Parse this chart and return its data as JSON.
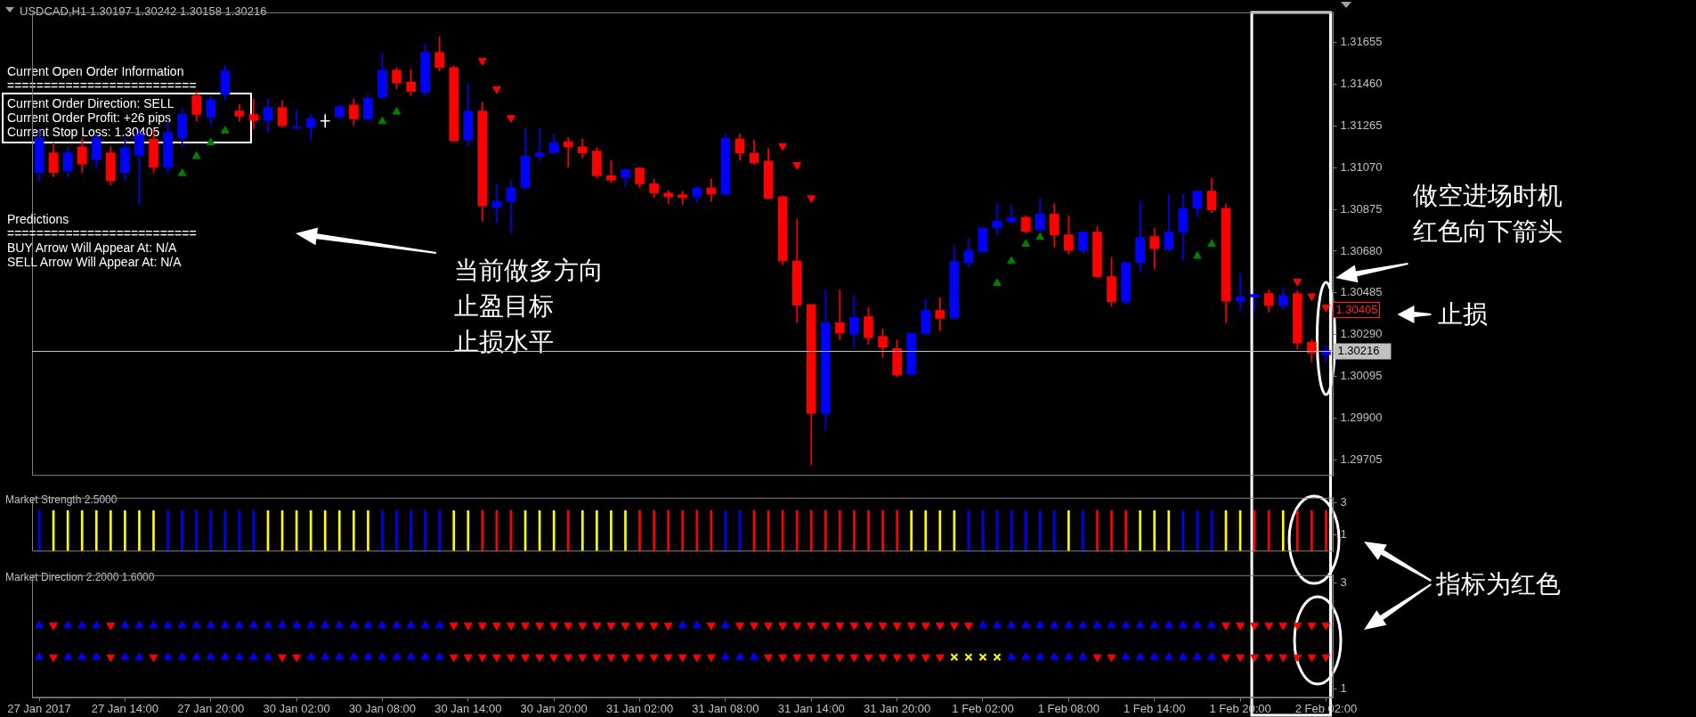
{
  "chart_data": [
    {
      "type": "candlestick",
      "title": "USDCAD,H1 1.30197 1.30242 1.30158 1.30216",
      "categories": [
        "27 Jan 2017",
        null,
        null,
        null,
        null,
        null,
        "27 Jan 14:00",
        null,
        null,
        null,
        null,
        null,
        "27 Jan 20:00",
        null,
        null,
        null,
        null,
        null,
        "30 Jan 02:00",
        null,
        null,
        null,
        null,
        null,
        "30 Jan 08:00",
        null,
        null,
        null,
        null,
        null,
        "30 Jan 14:00",
        null,
        null,
        null,
        null,
        null,
        "30 Jan 20:00",
        null,
        null,
        null,
        null,
        null,
        "31 Jan 02:00",
        null,
        null,
        null,
        null,
        null,
        "31 Jan 08:00",
        null,
        null,
        null,
        null,
        null,
        "31 Jan 14:00",
        null,
        null,
        null,
        null,
        null,
        "31 Jan 20:00",
        null,
        null,
        null,
        null,
        null,
        "1 Feb 02:00",
        null,
        null,
        null,
        null,
        null,
        "1 Feb 08:00",
        null,
        null,
        null,
        null,
        null,
        "1 Feb 14:00",
        null,
        null,
        null,
        null,
        null,
        "1 Feb 20:00",
        null,
        null,
        null,
        null,
        null,
        "2 Feb 02:00"
      ],
      "ohlc": [
        [
          1.31047,
          1.31246,
          1.31008,
          1.31207
        ],
        [
          1.31139,
          1.31187,
          1.31027,
          1.31047
        ],
        [
          1.31055,
          1.31167,
          1.31027,
          1.31139
        ],
        [
          1.31167,
          1.31207,
          1.31047,
          1.31087
        ],
        [
          1.31107,
          1.31226,
          1.31067,
          1.31207
        ],
        [
          1.31139,
          1.31167,
          1.30988,
          1.31008
        ],
        [
          1.31047,
          1.31207,
          1.31008,
          1.31163
        ],
        [
          1.31127,
          1.31246,
          1.30896,
          1.31226
        ],
        [
          1.31203,
          1.31246,
          1.31047,
          1.31071
        ],
        [
          1.31071,
          1.31286,
          1.31047,
          1.31234
        ],
        [
          1.31207,
          1.31346,
          1.31167,
          1.31318
        ],
        [
          1.31406,
          1.31425,
          1.31286,
          1.31318
        ],
        [
          1.31306,
          1.31406,
          1.31266,
          1.31386
        ],
        [
          1.31413,
          1.31545,
          1.31386,
          1.31521
        ],
        [
          1.31334,
          1.31366,
          1.31286,
          1.3131
        ],
        [
          1.31318,
          1.3139,
          1.3125,
          1.3129
        ],
        [
          1.3129,
          1.3139,
          1.31234,
          1.3135
        ],
        [
          1.3135,
          1.31382,
          1.31258,
          1.31266
        ],
        [
          1.31254,
          1.31342,
          1.3125,
          1.31258
        ],
        [
          1.31258,
          1.31318,
          1.31203,
          1.31298
        ],
        [
          1.31286,
          1.31318,
          1.31258,
          1.31286
        ],
        [
          1.31306,
          1.31362,
          1.31302,
          1.31354
        ],
        [
          1.31362,
          1.3139,
          1.31266,
          1.31298
        ],
        [
          1.31298,
          1.31413,
          1.3129,
          1.31394
        ],
        [
          1.31398,
          1.31601,
          1.3139,
          1.31525
        ],
        [
          1.31525,
          1.31537,
          1.31437,
          1.31465
        ],
        [
          1.31469,
          1.31529,
          1.31406,
          1.31425
        ],
        [
          1.31421,
          1.31648,
          1.31406,
          1.31608
        ],
        [
          1.31608,
          1.3168,
          1.31521,
          1.31537
        ],
        [
          1.31537,
          1.31545,
          1.31191,
          1.31195
        ],
        [
          1.31199,
          1.31461,
          1.31171,
          1.31334
        ],
        [
          1.31334,
          1.31374,
          1.3082,
          1.30892
        ],
        [
          1.30884,
          1.30992,
          1.30813,
          1.30912
        ],
        [
          1.30912,
          1.31008,
          1.30765,
          1.30976
        ],
        [
          1.30976,
          1.3125,
          1.30968,
          1.31123
        ],
        [
          1.31123,
          1.3125,
          1.31103,
          1.31139
        ],
        [
          1.31139,
          1.31226,
          1.31139,
          1.31187
        ],
        [
          1.31191,
          1.31211,
          1.31071,
          1.31167
        ],
        [
          1.31167,
          1.31203,
          1.31115,
          1.31139
        ],
        [
          1.31147,
          1.31163,
          1.31023,
          1.31031
        ],
        [
          1.31032,
          1.31102,
          1.31,
          1.31011
        ],
        [
          1.31024,
          1.31064,
          1.3098,
          1.3106
        ],
        [
          1.31067,
          1.31072,
          1.30975,
          1.30994
        ],
        [
          1.30994,
          1.31015,
          1.3093,
          1.30951
        ],
        [
          1.30951,
          1.30962,
          1.30902,
          1.30934
        ],
        [
          1.30943,
          1.30959,
          1.30897,
          1.3093
        ],
        [
          1.30934,
          1.30978,
          1.3091,
          1.30975
        ],
        [
          1.30975,
          1.31015,
          1.30913,
          1.30946
        ],
        [
          1.30946,
          1.31227,
          1.30943,
          1.31206
        ],
        [
          1.31203,
          1.31227,
          1.31105,
          1.31138
        ],
        [
          1.31138,
          1.31199,
          1.31084,
          1.31093
        ],
        [
          1.311,
          1.31162,
          1.30923,
          1.30926
        ],
        [
          1.30934,
          1.30938,
          1.30617,
          1.30634
        ],
        [
          1.30634,
          1.30829,
          1.30346,
          1.30428
        ],
        [
          1.30431,
          1.30431,
          1.29683,
          1.29922
        ],
        [
          1.29922,
          1.30499,
          1.29846,
          1.30346
        ],
        [
          1.30346,
          1.30499,
          1.30265,
          1.30297
        ],
        [
          1.30293,
          1.30479,
          1.30233,
          1.30371
        ],
        [
          1.30374,
          1.30418,
          1.30244,
          1.30276
        ],
        [
          1.30282,
          1.30317,
          1.30184,
          1.30231
        ],
        [
          1.30225,
          1.30265,
          1.30093,
          1.30101
        ],
        [
          1.30106,
          1.30297,
          1.30101,
          1.30297
        ],
        [
          1.30296,
          1.30455,
          1.30288,
          1.30403
        ],
        [
          1.30403,
          1.30463,
          1.30309,
          1.30366
        ],
        [
          1.30369,
          1.30707,
          1.30366,
          1.30631
        ],
        [
          1.30626,
          1.3074,
          1.30605,
          1.30683
        ],
        [
          1.30678,
          1.30788,
          1.30674,
          1.30788
        ],
        [
          1.30788,
          1.30902,
          1.30756,
          1.30821
        ],
        [
          1.30817,
          1.30894,
          1.30816,
          1.30837
        ],
        [
          1.30837,
          1.30845,
          1.30764,
          1.30772
        ],
        [
          1.3078,
          1.30926,
          1.30772,
          1.30853
        ],
        [
          1.30853,
          1.30902,
          1.30699,
          1.30756
        ],
        [
          1.30756,
          1.30845,
          1.30666,
          1.30683
        ],
        [
          1.30683,
          1.30769,
          1.30671,
          1.30769
        ],
        [
          1.30769,
          1.30796,
          1.30556,
          1.30561
        ],
        [
          1.30561,
          1.3065,
          1.30423,
          1.30444
        ],
        [
          1.30444,
          1.30626,
          1.30431,
          1.30626
        ],
        [
          1.30626,
          1.30913,
          1.30582,
          1.30744
        ],
        [
          1.30748,
          1.30788,
          1.30598,
          1.30691
        ],
        [
          1.30689,
          1.30944,
          1.30681,
          1.30769
        ],
        [
          1.30769,
          1.30944,
          1.30637,
          1.3088
        ],
        [
          1.3088,
          1.30964,
          1.3084,
          1.3096
        ],
        [
          1.3096,
          1.31019,
          1.3086,
          1.30872
        ],
        [
          1.3088,
          1.309,
          1.30347,
          1.30446
        ],
        [
          1.30446,
          1.30574,
          1.30403,
          1.30466
        ],
        [
          1.30466,
          1.30478,
          1.30403,
          1.30478
        ],
        [
          1.30482,
          1.305,
          1.30395,
          1.30426
        ],
        [
          1.30426,
          1.3051,
          1.30407,
          1.30474
        ],
        [
          1.30482,
          1.30494,
          1.30223,
          1.30251
        ],
        [
          1.30255,
          1.30267,
          1.30164,
          1.30204
        ],
        [
          1.30197,
          1.30242,
          1.30158,
          1.30216
        ]
      ],
      "colors": [
        "#0000ff",
        "#ff0000",
        "#0000ff",
        "#ff0000",
        "#0000ff",
        "#ff0000",
        "#0000ff",
        "#0000ff",
        "#ff0000",
        "#0000ff",
        "#0000ff",
        "#ff0000",
        "#0000ff",
        "#0000ff",
        "#ff0000",
        "#ff0000",
        "#0000ff",
        "#ff0000",
        "#0000ff",
        "#0000ff",
        "#ffffff",
        "#0000ff",
        "#ff0000",
        "#0000ff",
        "#0000ff",
        "#ff0000",
        "#ff0000",
        "#0000ff",
        "#ff0000",
        "#ff0000",
        "#0000ff",
        "#ff0000",
        "#0000ff",
        "#0000ff",
        "#0000ff",
        "#0000ff",
        "#0000ff",
        "#ff0000",
        "#ff0000",
        "#ff0000",
        "#ff0000",
        "#0000ff",
        "#ff0000",
        "#ff0000",
        "#ff0000",
        "#ff0000",
        "#0000ff",
        "#ff0000",
        "#0000ff",
        "#ff0000",
        "#ff0000",
        "#ff0000",
        "#ff0000",
        "#ff0000",
        "#ff0000",
        "#0000ff",
        "#ff0000",
        "#0000ff",
        "#ff0000",
        "#ff0000",
        "#ff0000",
        "#0000ff",
        "#0000ff",
        "#ff0000",
        "#0000ff",
        "#0000ff",
        "#0000ff",
        "#0000ff",
        "#0000ff",
        "#ff0000",
        "#0000ff",
        "#ff0000",
        "#ff0000",
        "#0000ff",
        "#ff0000",
        "#ff0000",
        "#0000ff",
        "#0000ff",
        "#ff0000",
        "#0000ff",
        "#0000ff",
        "#0000ff",
        "#ff0000",
        "#ff0000",
        "#0000ff",
        "#0000ff",
        "#ff0000",
        "#0000ff",
        "#ff0000",
        "#ff0000",
        "#0000ff"
      ],
      "series": [
        {
          "type": "scatter",
          "color": "#008000",
          "values": [
            null,
            null,
            null,
            null,
            null,
            null,
            null,
            null,
            null,
            null,
            1.31043,
            1.31123,
            1.31187,
            1.31242,
            null,
            null,
            null,
            null,
            null,
            null,
            null,
            null,
            null,
            null,
            1.31286,
            1.3133,
            null,
            null,
            null,
            null,
            null,
            null,
            null,
            null,
            null,
            null,
            null,
            null,
            null,
            null,
            null,
            null,
            null,
            null,
            null,
            null,
            null,
            null,
            null,
            null,
            null,
            null,
            null,
            null,
            null,
            null,
            null,
            null,
            null,
            null,
            null,
            null,
            null,
            null,
            null,
            null,
            null,
            1.3053,
            1.30633,
            1.30713,
            1.30745,
            null,
            null,
            null,
            null,
            null,
            null,
            null,
            null,
            null,
            null,
            1.30657,
            1.30713,
            null,
            null,
            null,
            null,
            null,
            null,
            null,
            null
          ]
        },
        {
          "type": "scatter",
          "color": "#ff0000",
          "values": [
            null,
            null,
            null,
            null,
            null,
            null,
            null,
            null,
            null,
            null,
            null,
            null,
            null,
            null,
            null,
            null,
            null,
            null,
            null,
            null,
            null,
            null,
            null,
            null,
            null,
            null,
            null,
            null,
            null,
            null,
            null,
            1.31569,
            1.31437,
            1.31302,
            null,
            null,
            null,
            null,
            null,
            null,
            null,
            null,
            null,
            null,
            null,
            null,
            null,
            null,
            null,
            null,
            null,
            null,
            1.31171,
            1.31083,
            1.30928,
            null,
            null,
            null,
            null,
            null,
            null,
            null,
            null,
            null,
            null,
            null,
            null,
            null,
            null,
            null,
            null,
            null,
            null,
            null,
            null,
            null,
            null,
            null,
            null,
            null,
            null,
            null,
            null,
            null,
            null,
            null,
            null,
            null,
            1.30538,
            1.3047,
            1.30418
          ]
        }
      ],
      "marker": "triangle",
      "ylim": [
        1.29631,
        1.31795
      ],
      "yticks": [
        1.29705,
        {
          "value": 1.299,
          "label": "1.29900"
        },
        1.30095,
        {
          "value": 1.3029,
          "label": "1.30290"
        },
        1.30485,
        {
          "value": 1.3068,
          "label": "1.30680"
        },
        1.30875,
        {
          "value": 1.3107,
          "label": "1.31070"
        },
        1.31265,
        {
          "value": 1.3146,
          "label": "1.31460"
        },
        1.31655
      ],
      "ref_lines": [
        {
          "axis": "y",
          "value": 1.30216,
          "label": "1.30216",
          "color": "#c0c0c0"
        }
      ],
      "annotations": [
        "Current Open Order Information",
        "==========================",
        "Current Order Direction: SELL",
        "Current Order Profit: +26 pips",
        "Current Stop Loss: 1.30405",
        "Predictions",
        "==========================",
        "BUY Arrow Will Appear At: N/A",
        "SELL Arrow Will Appear At: N/A",
        "当前做多方向",
        "止盈目标",
        "止损水平",
        "做空进场时机",
        "红色向下箭头",
        "止损",
        {
          "text": "1.30405",
          "x": "2 Feb 02:00",
          "y": 1.30405
        }
      ],
      "tick_labels": "y"
    },
    {
      "type": "bar",
      "title": "Market Strength 2.5000",
      "categories": [
        "27 Jan 2017",
        null,
        null,
        null,
        null,
        null,
        "27 Jan 14:00",
        null,
        null,
        null,
        null,
        null,
        "27 Jan 20:00",
        null,
        null,
        null,
        null,
        null,
        "30 Jan 02:00",
        null,
        null,
        null,
        null,
        null,
        "30 Jan 08:00",
        null,
        null,
        null,
        null,
        null,
        "30 Jan 14:00",
        null,
        null,
        null,
        null,
        null,
        "30 Jan 20:00",
        null,
        null,
        null,
        null,
        null,
        "31 Jan 02:00",
        null,
        null,
        null,
        null,
        null,
        "31 Jan 08:00",
        null,
        null,
        null,
        null,
        null,
        "31 Jan 14:00",
        null,
        null,
        null,
        null,
        null,
        "31 Jan 20:00",
        null,
        null,
        null,
        null,
        null,
        "1 Feb 02:00",
        null,
        null,
        null,
        null,
        null,
        "1 Feb 08:00",
        null,
        null,
        null,
        null,
        null,
        "1 Feb 14:00",
        null,
        null,
        null,
        null,
        null,
        "1 Feb 20:00",
        null,
        null,
        null,
        null,
        null,
        "2 Feb 02:00"
      ],
      "values": [
        2.5,
        2.5,
        2.5,
        2.5,
        2.5,
        2.5,
        2.5,
        2.5,
        2.5,
        2.5,
        2.5,
        2.5,
        2.5,
        2.5,
        2.5,
        2.5,
        2.5,
        2.5,
        2.5,
        2.5,
        2.5,
        2.5,
        2.5,
        2.5,
        2.5,
        2.5,
        2.5,
        2.5,
        2.5,
        2.5,
        2.5,
        2.5,
        2.5,
        2.5,
        2.5,
        2.5,
        2.5,
        2.5,
        2.5,
        2.5,
        2.5,
        2.5,
        2.5,
        2.5,
        2.5,
        2.5,
        2.5,
        2.5,
        2.5,
        2.5,
        2.5,
        2.5,
        2.5,
        2.5,
        2.5,
        2.5,
        2.5,
        2.5,
        2.5,
        2.5,
        2.5,
        2.5,
        2.5,
        2.5,
        2.5,
        2.5,
        2.5,
        2.5,
        2.5,
        2.5,
        2.5,
        2.5,
        2.5,
        2.5,
        2.5,
        2.5,
        2.5,
        2.5,
        2.5,
        2.5,
        2.5,
        2.5,
        2.5,
        2.5,
        2.5,
        2.5,
        2.5,
        2.5,
        2.5,
        2.5,
        2.5
      ],
      "colors": [
        "#0000ff",
        "#ffff00",
        "#ffff00",
        "#ffff00",
        "#ffff00",
        "#ffff00",
        "#ffff00",
        "#ffff00",
        "#ffff00",
        "#0000ff",
        "#0000ff",
        "#0000ff",
        "#0000ff",
        "#0000ff",
        "#0000ff",
        "#0000ff",
        "#ffff00",
        "#ffff00",
        "#ffff00",
        "#ffff00",
        "#ffff00",
        "#ffff00",
        "#ffff00",
        "#ffff00",
        "#0000ff",
        "#0000ff",
        "#0000ff",
        "#0000ff",
        "#0000ff",
        "#ffff00",
        "#ffff00",
        "#ff0000",
        "#ff0000",
        "#ff0000",
        "#ffff00",
        "#ffff00",
        "#ffff00",
        "#ff0000",
        "#ffff00",
        "#ffff00",
        "#ffff00",
        "#ffff00",
        "#ff0000",
        "#ff0000",
        "#ff0000",
        "#ff0000",
        "#ff0000",
        "#ff0000",
        "#0000ff",
        "#0000ff",
        "#ff0000",
        "#ff0000",
        "#ff0000",
        "#ff0000",
        "#ff0000",
        "#ff0000",
        "#ff0000",
        "#ff0000",
        "#ff0000",
        "#ff0000",
        "#ff0000",
        "#ffff00",
        "#ffff00",
        "#ffff00",
        "#ffff00",
        "#0000ff",
        "#0000ff",
        "#0000ff",
        "#0000ff",
        "#0000ff",
        "#0000ff",
        "#0000ff",
        "#ffff00",
        "#0000ff",
        "#ff0000",
        "#ff0000",
        "#ff0000",
        "#ffff00",
        "#ffff00",
        "#ffff00",
        "#0000ff",
        "#0000ff",
        "#0000ff",
        "#ffff00",
        "#ffff00",
        "#ff0000",
        "#ff0000",
        "#ffff00",
        "#ff0000",
        "#ff0000",
        "#ff0000"
      ],
      "ylim": [
        0,
        3.3
      ],
      "yticks": [
        1,
        3
      ],
      "annotations": [
        "指标为红色"
      ],
      "tick_labels": "y"
    },
    {
      "type": "scatter",
      "title": "Market Direction 2.2000 1.6000",
      "categories": [
        "27 Jan 2017",
        null,
        null,
        null,
        null,
        null,
        "27 Jan 14:00",
        null,
        null,
        null,
        null,
        null,
        "27 Jan 20:00",
        null,
        null,
        null,
        null,
        null,
        "30 Jan 02:00",
        null,
        null,
        null,
        null,
        null,
        "30 Jan 08:00",
        null,
        null,
        null,
        null,
        null,
        "30 Jan 14:00",
        null,
        null,
        null,
        null,
        null,
        "30 Jan 20:00",
        null,
        null,
        null,
        null,
        null,
        "31 Jan 02:00",
        null,
        null,
        null,
        null,
        null,
        "31 Jan 08:00",
        null,
        null,
        null,
        null,
        null,
        "31 Jan 14:00",
        null,
        null,
        null,
        null,
        null,
        "31 Jan 20:00",
        null,
        null,
        null,
        null,
        null,
        "1 Feb 02:00",
        null,
        null,
        null,
        null,
        null,
        "1 Feb 08:00",
        null,
        null,
        null,
        null,
        null,
        "1 Feb 14:00",
        null,
        null,
        null,
        null,
        null,
        "1 Feb 20:00",
        null,
        null,
        null,
        null,
        null,
        "2 Feb 02:00"
      ],
      "series": [
        {
          "type": "scatter",
          "color": "#0000ff",
          "marker": "triangle",
          "values": [
            2.2,
            null,
            2.2,
            2.2,
            2.2,
            null,
            2.2,
            2.2,
            2.2,
            2.2,
            2.2,
            2.2,
            2.2,
            2.2,
            2.2,
            2.2,
            2.2,
            2.2,
            2.2,
            2.2,
            2.2,
            2.2,
            2.2,
            2.2,
            2.2,
            2.2,
            2.2,
            2.2,
            2.2,
            null,
            null,
            null,
            null,
            null,
            null,
            null,
            null,
            null,
            null,
            null,
            null,
            null,
            null,
            null,
            null,
            2.2,
            2.2,
            null,
            2.2,
            null,
            null,
            null,
            null,
            null,
            null,
            null,
            null,
            null,
            null,
            null,
            null,
            null,
            null,
            null,
            null,
            null,
            2.2,
            2.2,
            2.2,
            2.2,
            2.2,
            2.2,
            2.2,
            2.2,
            2.2,
            2.2,
            2.2,
            2.2,
            2.2,
            2.2,
            2.2,
            2.2,
            2.2,
            null,
            null,
            null,
            null,
            null,
            null,
            null,
            null
          ]
        },
        {
          "type": "scatter",
          "color": "#ff0000",
          "marker": "triangle",
          "values": [
            null,
            2.2,
            null,
            null,
            null,
            2.2,
            null,
            null,
            null,
            null,
            null,
            null,
            null,
            null,
            null,
            null,
            null,
            null,
            null,
            null,
            null,
            null,
            null,
            null,
            null,
            null,
            null,
            null,
            null,
            2.2,
            2.2,
            2.2,
            2.2,
            2.2,
            2.2,
            2.2,
            2.2,
            2.2,
            2.2,
            2.2,
            2.2,
            2.2,
            2.2,
            2.2,
            2.2,
            null,
            null,
            2.2,
            null,
            2.2,
            2.2,
            2.2,
            2.2,
            2.2,
            2.2,
            2.2,
            2.2,
            2.2,
            2.2,
            2.2,
            2.2,
            2.2,
            2.2,
            2.2,
            2.2,
            2.2,
            null,
            null,
            null,
            null,
            null,
            null,
            null,
            null,
            null,
            null,
            null,
            null,
            null,
            null,
            null,
            null,
            null,
            2.2,
            2.2,
            2.2,
            2.2,
            2.2,
            2.2,
            2.2,
            2.2
          ]
        },
        {
          "type": "scatter",
          "color": "#0000ff",
          "marker": "triangle",
          "values": [
            1.6,
            null,
            1.6,
            1.6,
            1.6,
            null,
            1.6,
            1.6,
            null,
            1.6,
            1.6,
            1.6,
            1.6,
            1.6,
            1.6,
            1.6,
            1.6,
            null,
            null,
            1.6,
            1.6,
            1.6,
            1.6,
            1.6,
            1.6,
            1.6,
            1.6,
            1.6,
            1.6,
            null,
            null,
            null,
            null,
            null,
            null,
            null,
            null,
            null,
            null,
            null,
            null,
            null,
            null,
            null,
            null,
            null,
            null,
            null,
            1.6,
            1.6,
            1.6,
            null,
            null,
            null,
            null,
            null,
            null,
            null,
            null,
            null,
            null,
            null,
            null,
            null,
            null,
            null,
            null,
            null,
            1.6,
            1.6,
            1.6,
            1.6,
            1.6,
            1.6,
            null,
            null,
            1.6,
            1.6,
            1.6,
            1.6,
            1.6,
            1.6,
            1.6,
            null,
            null,
            null,
            null,
            null,
            null,
            null,
            null
          ]
        },
        {
          "type": "scatter",
          "color": "#ff0000",
          "marker": "triangle",
          "values": [
            null,
            1.6,
            null,
            null,
            null,
            1.6,
            null,
            null,
            1.6,
            null,
            null,
            null,
            null,
            null,
            null,
            null,
            null,
            1.6,
            1.6,
            null,
            null,
            null,
            null,
            null,
            null,
            null,
            null,
            null,
            null,
            1.6,
            1.6,
            1.6,
            1.6,
            1.6,
            1.6,
            1.6,
            1.6,
            1.6,
            1.6,
            1.6,
            1.6,
            1.6,
            1.6,
            1.6,
            1.6,
            1.6,
            1.6,
            1.6,
            null,
            null,
            null,
            1.6,
            1.6,
            1.6,
            1.6,
            1.6,
            1.6,
            1.6,
            1.6,
            1.6,
            1.6,
            1.6,
            1.6,
            1.6,
            null,
            null,
            null,
            null,
            null,
            null,
            null,
            null,
            null,
            null,
            1.6,
            1.6,
            null,
            null,
            null,
            null,
            null,
            null,
            null,
            1.6,
            1.6,
            1.6,
            1.6,
            1.6,
            1.6,
            1.6,
            1.6
          ]
        },
        {
          "type": "scatter",
          "color": "#ffff00",
          "marker": "cross",
          "values": [
            null,
            null,
            null,
            null,
            null,
            null,
            null,
            null,
            null,
            null,
            null,
            null,
            null,
            null,
            null,
            null,
            null,
            null,
            null,
            null,
            null,
            null,
            null,
            null,
            null,
            null,
            null,
            null,
            null,
            null,
            null,
            null,
            null,
            null,
            null,
            null,
            null,
            null,
            null,
            null,
            null,
            null,
            null,
            null,
            null,
            null,
            null,
            null,
            null,
            null,
            null,
            null,
            null,
            null,
            null,
            null,
            null,
            null,
            null,
            null,
            null,
            null,
            null,
            null,
            1.6,
            1.6,
            1.6,
            1.6,
            null,
            null,
            null,
            null,
            null,
            null,
            null,
            null,
            null,
            null,
            null,
            null,
            null,
            null,
            null,
            null,
            null,
            null,
            null,
            null,
            null,
            null,
            null
          ]
        }
      ],
      "ylim": [
        0.83,
        3.15
      ],
      "yticks": [
        1,
        3
      ]
    }
  ]
}
